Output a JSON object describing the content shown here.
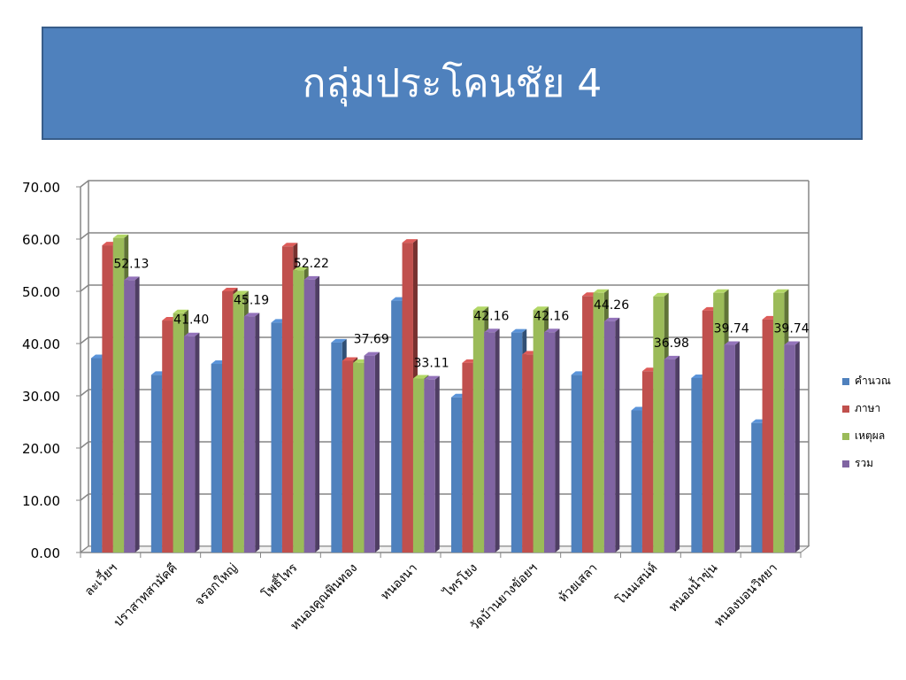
{
  "title": "กลุ่มประโคนชัย 4",
  "chart_data": {
    "type": "bar",
    "style": "3d-clustered-column",
    "categories": [
      "ละเวี้ยฯ",
      "ปราสาทสามัคคี",
      "จรอกใหญ่",
      "โพธิ์ไทร",
      "หนองคูณพินทอง",
      "หนองนา",
      "ไทรโยง",
      "วัดบ้านยางข้อยฯ",
      "ห้วยเสลา",
      "โนนเสน่ห์",
      "หนองน้ำขุ่น",
      "หนองบอนวิทยา"
    ],
    "series": [
      {
        "name": "คำนวณ",
        "color": "#4f81bd",
        "values": [
          37.2,
          34.0,
          36.1,
          44.0,
          40.2,
          48.2,
          29.7,
          42.1,
          34.0,
          27.2,
          33.4,
          24.8
        ]
      },
      {
        "name": "ภาษา",
        "color": "#c0504d",
        "values": [
          58.8,
          44.4,
          50.0,
          58.6,
          36.7,
          59.3,
          36.3,
          37.9,
          49.1,
          34.7,
          46.3,
          44.6
        ]
      },
      {
        "name": "เหตุผล",
        "color": "#9bbb59",
        "values": [
          60.2,
          45.8,
          49.4,
          54.0,
          36.3,
          33.3,
          46.4,
          46.4,
          49.7,
          49.0,
          49.7,
          49.7
        ]
      },
      {
        "name": "รวม",
        "color": "#8064a2",
        "values": [
          52.13,
          41.4,
          45.19,
          52.22,
          37.69,
          33.11,
          42.16,
          42.16,
          44.26,
          36.98,
          39.74,
          39.74
        ]
      }
    ],
    "data_labels": [
      "52.13",
      "41.40",
      "45.19",
      "52.22",
      "37.69",
      "33.11",
      "42.16",
      "42.16",
      "44.26",
      "36.98",
      "39.74",
      "39.74"
    ],
    "y_ticks": [
      "0.00",
      "10.00",
      "20.00",
      "30.00",
      "40.00",
      "50.00",
      "60.00",
      "70.00"
    ],
    "ylim": [
      0,
      70
    ],
    "grid": true,
    "legend_position": "right"
  }
}
